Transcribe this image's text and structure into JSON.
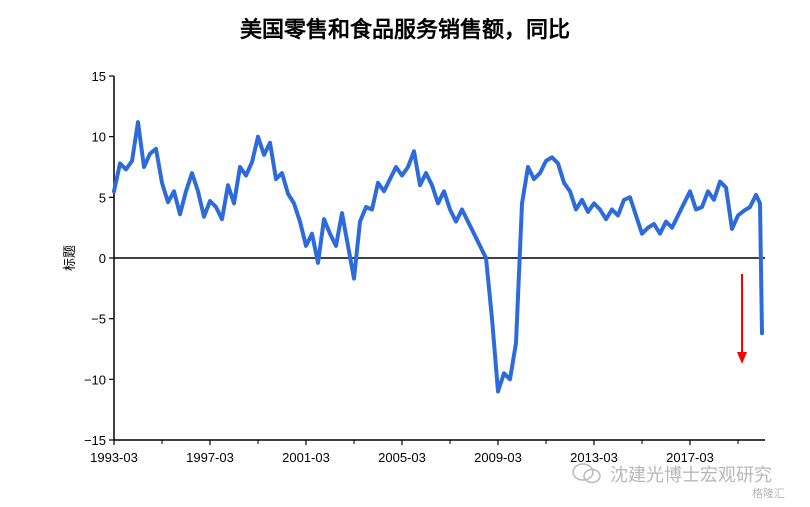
{
  "title": "美国零售和食品服务销售额，同比",
  "watermark": {
    "text": "沈建光博士宏观研究",
    "logo_text": "格隆汇"
  },
  "chart_data": {
    "type": "line",
    "title": "美国零售和食品服务销售额，同比",
    "ylabel": "标题",
    "xlabel": "",
    "ylim": [
      -15,
      15
    ],
    "yticks": [
      -15,
      -10,
      -5,
      0,
      5,
      10,
      15
    ],
    "xticks": [
      "1993-03",
      "1997-03",
      "2001-03",
      "2005-03",
      "2009-03",
      "2013-03",
      "2017-03"
    ],
    "grid": false,
    "legend": "none",
    "series_color": "#2E6BDA",
    "annotation": {
      "type": "arrow",
      "direction": "down",
      "color": "#FF0000"
    },
    "series": [
      {
        "x": [
          "1993-03",
          "1993-06",
          "1993-09",
          "1993-12",
          "1994-03",
          "1994-06",
          "1994-09",
          "1994-12",
          "1995-03",
          "1995-06",
          "1995-09",
          "1995-12",
          "1996-03",
          "1996-06",
          "1996-09",
          "1996-12",
          "1997-03",
          "1997-06",
          "1997-09",
          "1997-12",
          "1998-03",
          "1998-06",
          "1998-09",
          "1998-12",
          "1999-03",
          "1999-06",
          "1999-09",
          "1999-12",
          "2000-03",
          "2000-06",
          "2000-09",
          "2000-12",
          "2001-03",
          "2001-06",
          "2001-09",
          "2001-12",
          "2002-03",
          "2002-06",
          "2002-09",
          "2002-12",
          "2003-03",
          "2003-06",
          "2003-09",
          "2003-12",
          "2004-03",
          "2004-06",
          "2004-09",
          "2004-12",
          "2005-03",
          "2005-06",
          "2005-09",
          "2005-12",
          "2006-03",
          "2006-06",
          "2006-09",
          "2006-12",
          "2007-03",
          "2007-06",
          "2007-09",
          "2007-12",
          "2008-03",
          "2008-06",
          "2008-09",
          "2008-12",
          "2009-03",
          "2009-06",
          "2009-09",
          "2009-12",
          "2010-03",
          "2010-06",
          "2010-09",
          "2010-12",
          "2011-03",
          "2011-06",
          "2011-09",
          "2011-12",
          "2012-03",
          "2012-06",
          "2012-09",
          "2012-12",
          "2013-03",
          "2013-06",
          "2013-09",
          "2013-12",
          "2014-03",
          "2014-06",
          "2014-09",
          "2014-12",
          "2015-03",
          "2015-06",
          "2015-09",
          "2015-12",
          "2016-03",
          "2016-06",
          "2016-09",
          "2016-12",
          "2017-03",
          "2017-06",
          "2017-09",
          "2017-12",
          "2018-03",
          "2018-06",
          "2018-09",
          "2018-12",
          "2019-03",
          "2019-06",
          "2019-09",
          "2019-12",
          "2020-02",
          "2020-03"
        ],
        "y": [
          5.5,
          7.8,
          7.3,
          8.0,
          11.2,
          7.5,
          8.6,
          9.0,
          6.2,
          4.6,
          5.5,
          3.6,
          5.5,
          7.0,
          5.5,
          3.4,
          4.7,
          4.2,
          3.2,
          6.0,
          4.5,
          7.5,
          6.8,
          7.9,
          10.0,
          8.5,
          9.5,
          6.5,
          7.0,
          5.3,
          4.5,
          3.0,
          1.0,
          2.0,
          -0.4,
          3.2,
          2.0,
          1.0,
          3.7,
          1.0,
          -1.7,
          3.0,
          4.2,
          4.0,
          6.2,
          5.5,
          6.5,
          7.5,
          6.8,
          7.5,
          8.8,
          6.0,
          7.0,
          6.0,
          4.5,
          5.5,
          4.0,
          3.0,
          4.0,
          3.0,
          2.0,
          1.0,
          0.0,
          -5.0,
          -11.0,
          -9.5,
          -10.0,
          -7.0,
          4.5,
          7.5,
          6.5,
          7.0,
          8.0,
          8.3,
          7.8,
          6.2,
          5.5,
          4.0,
          4.8,
          3.8,
          4.5,
          4.0,
          3.2,
          4.0,
          3.5,
          4.8,
          5.0,
          3.5,
          2.0,
          2.5,
          2.8,
          2.0,
          3.0,
          2.5,
          3.5,
          4.5,
          5.5,
          4.0,
          4.2,
          5.5,
          4.8,
          6.3,
          5.8,
          2.4,
          3.5,
          3.9,
          4.2,
          5.2,
          4.5,
          -6.2
        ]
      }
    ]
  }
}
